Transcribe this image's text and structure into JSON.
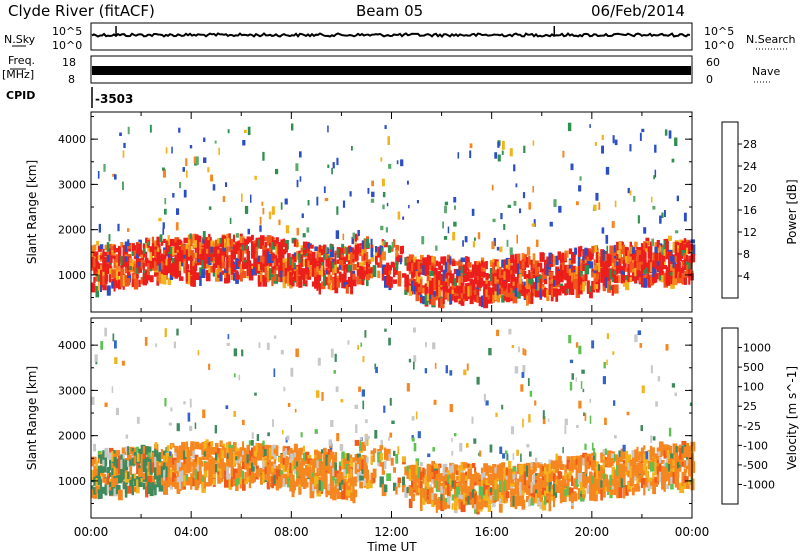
{
  "header": {
    "station": "Clyde River (fitACF)",
    "beam": "Beam 05",
    "date": "06/Feb/2014"
  },
  "noise_panel": {
    "left_label": "N.Sky",
    "left_ticks": [
      "10^5",
      "10^0"
    ],
    "right_label": "N.Search",
    "right_ticks": [
      "10^5",
      "10^0"
    ]
  },
  "freq_panel": {
    "left_label_top": "Freq.",
    "left_label_bottom": "[MHz]",
    "left_ticks": [
      "18",
      "8"
    ],
    "right_label": "Nave",
    "right_ticks": [
      "60",
      "0"
    ]
  },
  "cpid": {
    "label": "CPID",
    "value": "-3503"
  },
  "x_axis": {
    "label": "Time UT",
    "ticks": [
      "00:00",
      "04:00",
      "08:00",
      "12:00",
      "16:00",
      "20:00",
      "00:00"
    ]
  },
  "colors": {
    "power_scale": [
      "#0a1ee6",
      "#2b4ec4",
      "#2f8f4f",
      "#5aa86a",
      "#f2b31d",
      "#f6861f",
      "#ef5a1c",
      "#ec1e1c"
    ],
    "velocity_scale": [
      "#2744b8",
      "#3264c9",
      "#3e8a5d",
      "#5cc150",
      "#c8c8c8",
      "#f2b31d",
      "#f6861f",
      "#ef5a1c",
      "#ec1e1c"
    ]
  },
  "chart_data": [
    {
      "type": "heatmap",
      "panel": "power",
      "title": "",
      "xlabel": "Time UT",
      "ylabel": "Slant Range [km]",
      "xlim": [
        0,
        24
      ],
      "ylim": [
        180,
        4600
      ],
      "yticks": [
        "1000",
        "2000",
        "3000",
        "4000"
      ],
      "colorbar": {
        "label": "Power [dB]",
        "ticks": [
          "4",
          "8",
          "12",
          "16",
          "20",
          "24",
          "28"
        ],
        "range": [
          0,
          32
        ]
      },
      "dominant_band_km": [
        650,
        1600
      ]
    },
    {
      "type": "heatmap",
      "panel": "velocity",
      "title": "",
      "xlabel": "Time UT",
      "ylabel": "Slant Range [km]",
      "xlim": [
        0,
        24
      ],
      "ylim": [
        180,
        4600
      ],
      "yticks": [
        "1000",
        "2000",
        "3000",
        "4000"
      ],
      "colorbar": {
        "label": "Velocity [m s^-1]",
        "ticks": [
          "1000",
          "500",
          "100",
          "25",
          "-25",
          "-100",
          "-500",
          "-1000"
        ]
      },
      "dominant_band_km": [
        650,
        1800
      ]
    }
  ]
}
